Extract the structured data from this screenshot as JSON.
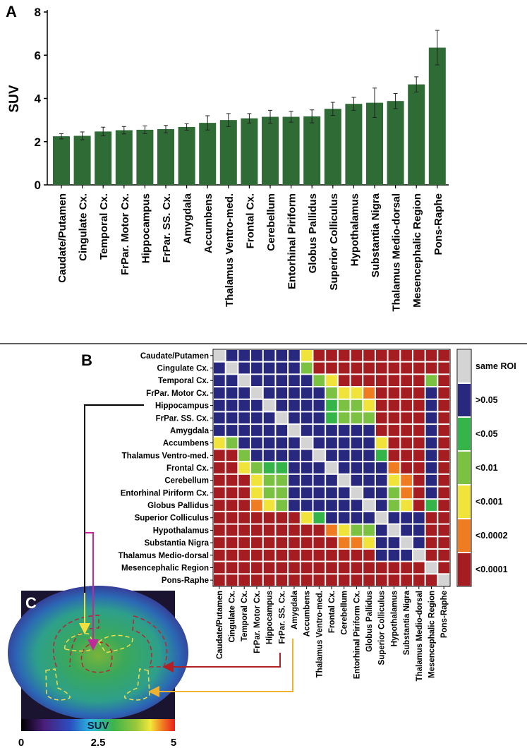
{
  "panel_labels": {
    "a": "A",
    "b": "B",
    "c": "C"
  },
  "colors": {
    "bar": "#2e6b35",
    "same": "#d4d4d4",
    "ns": "#27287e",
    "p05": "#35b44a",
    "p01": "#7cc242",
    "p001": "#f0e43a",
    "p0002": "#f07c22",
    "p0001": "#a51d20"
  },
  "chart_data": [
    {
      "type": "bar",
      "title": "A",
      "ylabel": "SUV",
      "xlabel": "",
      "ylim": [
        0,
        8
      ],
      "yticks": [
        "0",
        "2",
        "4",
        "6",
        "8"
      ],
      "categories": [
        "Caudate/Putamen",
        "Cingulate Cx.",
        "Temporal Cx.",
        "FrPar. Motor Cx.",
        "Hippocampus",
        "FrPar. SS. Cx.",
        "Amygdala",
        "Accumbens",
        "Thalamus Ventro-med.",
        "Frontal Cx.",
        "Cerebellum",
        "Entorhinal Piriform",
        "Globus Pallidus",
        "Superior Colliculus",
        "Hypothalamus",
        "Substantia Nigra",
        "Thalamus Medio-dorsal",
        "Mesencephalic Region",
        "Pons-Raphe"
      ],
      "values": [
        2.25,
        2.27,
        2.47,
        2.53,
        2.55,
        2.58,
        2.68,
        2.87,
        3.0,
        3.08,
        3.15,
        3.15,
        3.17,
        3.52,
        3.75,
        3.8,
        3.88,
        4.65,
        6.35
      ],
      "errors": [
        0.12,
        0.18,
        0.2,
        0.17,
        0.18,
        0.17,
        0.15,
        0.33,
        0.3,
        0.22,
        0.3,
        0.25,
        0.3,
        0.3,
        0.3,
        0.68,
        0.35,
        0.35,
        0.8
      ]
    },
    {
      "type": "heatmap",
      "title": "B",
      "rows": [
        "Caudate/Putamen",
        "Cingulate Cx.",
        "Temporal Cx.",
        "FrPar. Motor Cx.",
        "Hippocampus",
        "FrPar. SS. Cx.",
        "Amygdala",
        "Accumbens",
        "Thalamus Ventro-med.",
        "Frontal Cx.",
        "Cerebellum",
        "Entorhinal Piriform Cx.",
        "Globus Pallidus",
        "Superior Colliculus",
        "Hypothalamus",
        "Substantia Nigra",
        "Thalamus Medio-dorsal",
        "Mesencephalic Region",
        "Pons-Raphe"
      ],
      "legend": [
        {
          "code": "S",
          "label": "same ROI"
        },
        {
          "code": "N",
          "label": ">0.05"
        },
        {
          "code": "G",
          "label": "<0.05"
        },
        {
          "code": "L",
          "label": "<0.01"
        },
        {
          "code": "Y",
          "label": "<0.001"
        },
        {
          "code": "O",
          "label": "<0.0002"
        },
        {
          "code": "R",
          "label": "<0.0001"
        }
      ],
      "matrix": [
        "SNNNNNNYRRRRRRRRRRR",
        "NSNNNNNLRRRRRRRRRRR",
        "NNSNNNNNLYRRRRRRRLR",
        "NNNSNNNNNLYYORRRRNR",
        "NNNNSNNNNGLLYRRRRNR",
        "NNNNNSNNNGLLLRRRRNR",
        "NNNNNNSNNNNNNRRRRNR",
        "YLNNNNNSNNNNNYRRRNR",
        "RRLNNNNNSNNNNGRRRNR",
        "RRYLGGNNNSNNNNORRNR",
        "RRRYLLNNNNSNNNYORNR",
        "RRRYLLNNNNNSNNLORNR",
        "RRROYLNNNNNNSNLYRGR",
        "RRRRRRRYGNNNNSNNNRR",
        "RRRRRRRRROYLLNSNNRR",
        "RRRRRRRRRROOYNNSNRR",
        "RRRRRRRRRRRRRNNNSRR",
        "RRRRRRRRRRRRRRRRRSR",
        "RRRRRRRRRRRRRRRRRRS"
      ]
    }
  ],
  "panel_c": {
    "colorbar_label": "SUV",
    "colorbar_ticks": [
      "0",
      "2.5",
      "5"
    ]
  }
}
